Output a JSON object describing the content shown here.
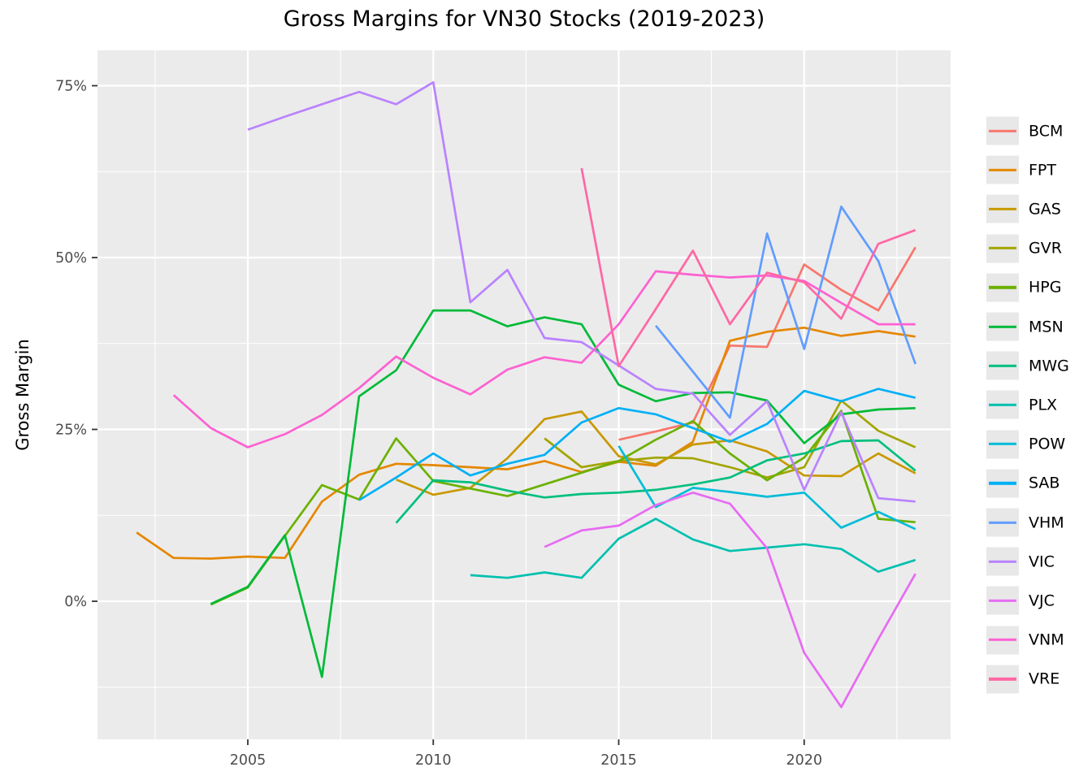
{
  "title": "Gross Margins for VN30 Stocks (2019-2023)",
  "ylabel": "Gross Margin",
  "chart_data": {
    "type": "line",
    "title": "Gross Margins for VN30 Stocks (2019-2023)",
    "xlabel": "",
    "ylabel": "Gross Margin",
    "xlim": [
      2000.9,
      2024.0
    ],
    "ylim": [
      -20,
      80
    ],
    "grid": "on",
    "legend_position": "right",
    "panel_background": "#EBEBEB",
    "gridline_color": "#FFFFFF",
    "tick_label_color": "#4D4D4D",
    "x_ticks": [
      {
        "value": 2005,
        "label": "2005"
      },
      {
        "value": 2010,
        "label": "2010"
      },
      {
        "value": 2015,
        "label": "2015"
      },
      {
        "value": 2020,
        "label": "2020"
      }
    ],
    "x_minor_ticks": [
      2002.5,
      2007.5,
      2012.5,
      2017.5,
      2022.5
    ],
    "y_ticks": [
      {
        "value": 0,
        "label": "0%"
      },
      {
        "value": 25,
        "label": "25%"
      },
      {
        "value": 50,
        "label": "50%"
      },
      {
        "value": 75,
        "label": "75%"
      }
    ],
    "y_minor_ticks": [
      -12.5,
      12.5,
      37.5,
      62.5
    ],
    "series": [
      {
        "name": "BCM",
        "color": "#F8766D",
        "x": [
          2015,
          2016,
          2017,
          2018,
          2019,
          2020,
          2021,
          2022,
          2023
        ],
        "values": [
          23.5,
          24.7,
          26.0,
          37.2,
          37.0,
          49.0,
          45.3,
          42.3,
          51.5
        ]
      },
      {
        "name": "FPT",
        "color": "#E58700",
        "x": [
          2002,
          2003,
          2004,
          2005,
          2006,
          2007,
          2008,
          2009,
          2010,
          2011,
          2012,
          2013,
          2014,
          2015,
          2016,
          2017,
          2018,
          2019,
          2020,
          2021,
          2022,
          2023
        ],
        "values": [
          10.0,
          6.3,
          6.2,
          6.5,
          6.3,
          14.5,
          18.4,
          20.0,
          19.8,
          19.5,
          19.2,
          20.4,
          18.8,
          20.3,
          19.7,
          23.2,
          37.9,
          39.2,
          39.8,
          38.6,
          39.3,
          38.5
        ]
      },
      {
        "name": "GAS",
        "color": "#C99800",
        "x": [
          2009,
          2010,
          2011,
          2012,
          2013,
          2014,
          2015,
          2016,
          2017,
          2018,
          2019,
          2020,
          2021,
          2022,
          2023
        ],
        "values": [
          17.7,
          15.5,
          16.5,
          20.8,
          26.5,
          27.6,
          21.1,
          19.9,
          22.8,
          23.4,
          21.8,
          18.3,
          18.2,
          21.5,
          18.6
        ]
      },
      {
        "name": "GVR",
        "color": "#A3A500",
        "x": [
          2013,
          2014,
          2015,
          2016,
          2017,
          2018,
          2019,
          2020,
          2021,
          2022,
          2023
        ],
        "values": [
          23.7,
          19.5,
          20.4,
          20.9,
          20.8,
          19.5,
          18.0,
          19.5,
          29.2,
          24.8,
          22.4
        ]
      },
      {
        "name": "HPG",
        "color": "#6BB100",
        "x": [
          2004,
          2005,
          2006,
          2007,
          2008,
          2009,
          2010,
          2011,
          2012,
          2013,
          2014,
          2015,
          2016,
          2017,
          2018,
          2019,
          2020,
          2021,
          2022,
          2023
        ],
        "values": [
          -0.5,
          2.0,
          9.5,
          16.9,
          14.8,
          23.7,
          17.5,
          16.4,
          15.3,
          17.0,
          18.7,
          20.4,
          23.5,
          26.2,
          21.5,
          17.6,
          20.9,
          27.7,
          12.0,
          11.5
        ]
      },
      {
        "name": "MSN",
        "color": "#00BA38",
        "x": [
          2004,
          2005,
          2006,
          2007,
          2008,
          2009,
          2010,
          2011,
          2012,
          2013,
          2014,
          2015,
          2016,
          2017,
          2018,
          2019,
          2020,
          2021,
          2022,
          2023
        ],
        "values": [
          -0.4,
          2.1,
          9.6,
          -11.0,
          29.8,
          33.6,
          42.3,
          42.3,
          40.0,
          41.3,
          40.3,
          31.5,
          29.1,
          30.3,
          30.4,
          29.2,
          23.0,
          27.2,
          27.9,
          28.1
        ]
      },
      {
        "name": "MWG",
        "color": "#00BF7D",
        "x": [
          2009,
          2010,
          2011,
          2012,
          2013,
          2014,
          2015,
          2016,
          2017,
          2018,
          2019,
          2020,
          2021,
          2022,
          2023
        ],
        "values": [
          11.4,
          17.6,
          17.3,
          16.1,
          15.1,
          15.6,
          15.8,
          16.2,
          17.0,
          18.0,
          20.5,
          21.5,
          23.3,
          23.4,
          19.0
        ]
      },
      {
        "name": "PLX",
        "color": "#00C0AF",
        "x": [
          2011,
          2012,
          2013,
          2014,
          2015,
          2016,
          2017,
          2018,
          2019,
          2020,
          2021,
          2022,
          2023
        ],
        "values": [
          3.8,
          3.4,
          4.2,
          3.4,
          9.1,
          12.0,
          9.0,
          7.3,
          7.8,
          8.3,
          7.6,
          4.3,
          6.0
        ]
      },
      {
        "name": "POW",
        "color": "#00BCD8",
        "x": [
          2015,
          2016,
          2017,
          2018,
          2019,
          2020,
          2021,
          2022,
          2023
        ],
        "values": [
          22.6,
          13.7,
          16.5,
          15.9,
          15.2,
          15.8,
          10.7,
          13.0,
          10.5
        ]
      },
      {
        "name": "SAB",
        "color": "#00B0F6",
        "x": [
          2008,
          2009,
          2010,
          2011,
          2012,
          2013,
          2014,
          2015,
          2016,
          2017,
          2018,
          2019,
          2020,
          2021,
          2022,
          2023
        ],
        "values": [
          14.7,
          18.0,
          21.5,
          18.3,
          20.0,
          21.3,
          26.0,
          28.1,
          27.2,
          25.2,
          23.2,
          25.8,
          30.6,
          29.1,
          30.9,
          29.6
        ]
      },
      {
        "name": "VHM",
        "color": "#619CFF",
        "x": [
          2016,
          2017,
          2018,
          2019,
          2020,
          2021,
          2022,
          2023
        ],
        "values": [
          40.1,
          33.4,
          26.7,
          53.5,
          36.7,
          57.4,
          49.5,
          34.5
        ]
      },
      {
        "name": "VIC",
        "color": "#B983FF",
        "x": [
          2005,
          2006,
          2007,
          2008,
          2009,
          2010,
          2011,
          2012,
          2013,
          2014,
          2015,
          2016,
          2017,
          2018,
          2019,
          2020,
          2021,
          2022,
          2023
        ],
        "values": [
          68.6,
          70.5,
          72.3,
          74.1,
          72.3,
          75.5,
          43.5,
          48.2,
          38.3,
          37.7,
          34.3,
          30.9,
          30.2,
          24.2,
          29.1,
          16.2,
          27.5,
          15.0,
          14.5
        ]
      },
      {
        "name": "VJC",
        "color": "#E76BF3",
        "x": [
          2013,
          2014,
          2015,
          2016,
          2017,
          2018,
          2019,
          2020,
          2021,
          2022,
          2023
        ],
        "values": [
          7.9,
          10.3,
          11.0,
          14.0,
          15.8,
          14.2,
          7.7,
          -7.5,
          -15.4,
          -5.5,
          4.0
        ]
      },
      {
        "name": "VNM",
        "color": "#FD61D1",
        "x": [
          2003,
          2004,
          2005,
          2006,
          2007,
          2008,
          2009,
          2010,
          2011,
          2012,
          2013,
          2014,
          2015,
          2016,
          2017,
          2018,
          2019,
          2020,
          2021,
          2022,
          2023
        ],
        "values": [
          30.0,
          25.2,
          22.4,
          24.3,
          27.1,
          31.0,
          35.6,
          32.5,
          30.1,
          33.7,
          35.5,
          34.7,
          40.3,
          48.0,
          47.5,
          47.1,
          47.4,
          46.6,
          43.4,
          40.3,
          40.3
        ]
      },
      {
        "name": "VRE",
        "color": "#FF67A4",
        "x": [
          2014,
          2015,
          2016,
          2017,
          2018,
          2019,
          2020,
          2021,
          2022,
          2023
        ],
        "values": [
          63.0,
          34.2,
          42.5,
          51.0,
          40.3,
          47.8,
          46.4,
          41.1,
          52.0,
          54.0
        ]
      }
    ]
  }
}
